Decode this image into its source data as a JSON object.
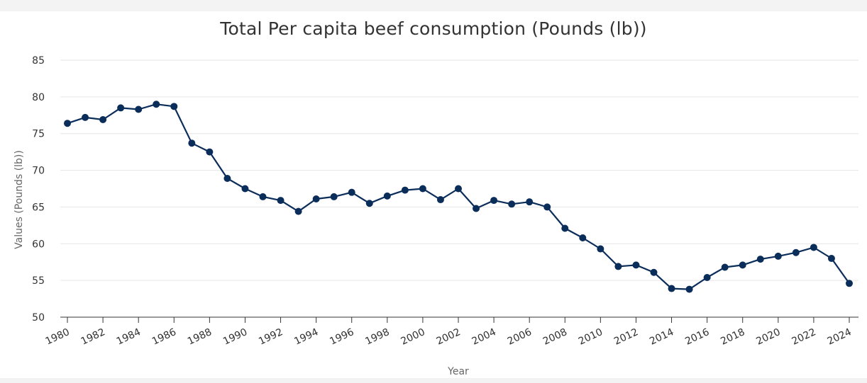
{
  "chart_data": {
    "type": "line",
    "title": "Total Per capita beef consumption (Pounds (lb))",
    "xlabel": "Year",
    "ylabel": "Values (Pounds (lb))",
    "ylim": [
      50,
      85
    ],
    "yticks": [
      "50",
      "55",
      "60",
      "65",
      "70",
      "75",
      "80",
      "85"
    ],
    "xticks": [
      "1980",
      "1982",
      "1984",
      "1986",
      "1988",
      "1990",
      "1992",
      "1994",
      "1996",
      "1998",
      "2000",
      "2002",
      "2004",
      "2006",
      "2008",
      "2010",
      "2012",
      "2014",
      "2016",
      "2018",
      "2020",
      "2022",
      "2024"
    ],
    "grid": true,
    "series": [
      {
        "name": "Total Per capita beef consumption",
        "color": "#0b2d5a",
        "x": [
          1980,
          1981,
          1982,
          1983,
          1984,
          1985,
          1986,
          1987,
          1988,
          1989,
          1990,
          1991,
          1992,
          1993,
          1994,
          1995,
          1996,
          1997,
          1998,
          1999,
          2000,
          2001,
          2002,
          2003,
          2004,
          2005,
          2006,
          2007,
          2008,
          2009,
          2010,
          2011,
          2012,
          2013,
          2014,
          2015,
          2016,
          2017,
          2018,
          2019,
          2020,
          2021,
          2022,
          2023,
          2024
        ],
        "values": [
          76.4,
          77.2,
          76.9,
          78.5,
          78.3,
          79.0,
          78.7,
          73.7,
          72.5,
          68.9,
          67.5,
          66.4,
          65.9,
          64.4,
          66.1,
          66.4,
          67.0,
          65.5,
          66.5,
          67.3,
          67.5,
          66.0,
          67.5,
          64.8,
          65.9,
          65.4,
          65.7,
          65.0,
          62.1,
          60.8,
          59.3,
          56.9,
          57.1,
          56.1,
          53.9,
          53.8,
          55.4,
          56.8,
          57.1,
          57.9,
          58.3,
          58.8,
          59.5,
          58.0,
          54.6
        ]
      }
    ]
  }
}
